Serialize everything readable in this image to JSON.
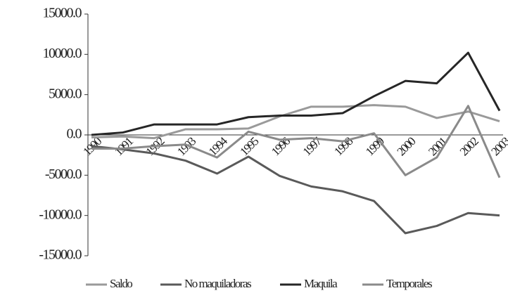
{
  "chart_data": {
    "type": "line",
    "categories": [
      "1990",
      "1991",
      "1992",
      "1993",
      "1994",
      "1995",
      "1996",
      "1997",
      "1998",
      "1999",
      "2000",
      "2001",
      "2002",
      "2003"
    ],
    "series": [
      {
        "name": "Saldo",
        "color": "#9a9a9a",
        "values": [
          -300,
          -200,
          -400,
          700,
          700,
          800,
          2300,
          3500,
          3500,
          3700,
          3500,
          2100,
          2900,
          1700
        ]
      },
      {
        "name": "No maquiladoras",
        "color": "#5a5a5a",
        "values": [
          -1400,
          -1800,
          -2300,
          -3200,
          -4800,
          -2700,
          -5100,
          -6400,
          -7000,
          -8200,
          -12200,
          -11300,
          -9700,
          -10000
        ]
      },
      {
        "name": "Maquila",
        "color": "#262626",
        "values": [
          0,
          300,
          1300,
          1300,
          1300,
          2200,
          2400,
          2400,
          2700,
          4800,
          6700,
          6400,
          10200,
          3000
        ]
      },
      {
        "name": "Temporales",
        "color": "#8a8a8a",
        "values": [
          -1700,
          -1700,
          -1400,
          -1200,
          -2800,
          400,
          -600,
          -400,
          -800,
          200,
          -5000,
          -2800,
          3600,
          -5300
        ]
      }
    ],
    "ylim": [
      -15000,
      15000
    ],
    "yticks": [
      {
        "value": 15000,
        "label": "15000.0"
      },
      {
        "value": 10000,
        "label": "10000.0"
      },
      {
        "value": 5000,
        "label": "5000.0"
      },
      {
        "value": 0,
        "label": "0.0"
      },
      {
        "value": -5000,
        "label": "-5000.0"
      },
      {
        "value": -10000,
        "label": "-10000.0"
      },
      {
        "value": -15000,
        "label": "-15000.0"
      }
    ]
  }
}
